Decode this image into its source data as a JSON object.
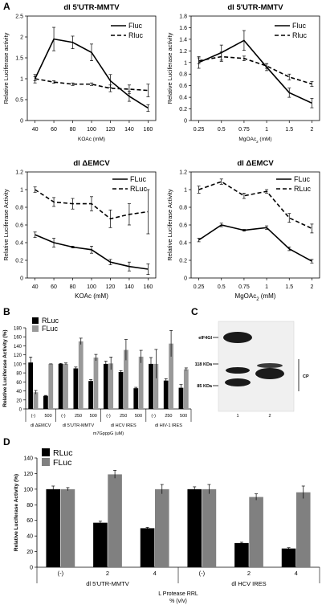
{
  "colors": {
    "black": "#000000",
    "gray": "#999999",
    "white": "#ffffff",
    "blot_bg": "#f0f0f0",
    "band": "#1a1a1a"
  },
  "panel_letters": [
    "A",
    "B",
    "C",
    "D"
  ],
  "chart_data": [
    {
      "id": "A1",
      "type": "line",
      "title": "dl 5'UTR-MMTV",
      "xlabel": "KOAc (mM)",
      "ylabel": "Relative Luciferase activity",
      "categories": [
        "40",
        "60",
        "80",
        "100",
        "120",
        "140",
        "160"
      ],
      "ylim": [
        0,
        2.5
      ],
      "yticks": [
        "0",
        "0.5",
        "1",
        "1.5",
        "2",
        "2.5"
      ],
      "legend_position": "top-right",
      "series": [
        {
          "name": "Fluc",
          "style": "solid",
          "values": [
            1.0,
            1.95,
            1.87,
            1.63,
            0.95,
            0.58,
            0.3
          ],
          "err": [
            0.1,
            0.28,
            0.15,
            0.2,
            0.15,
            0.12,
            0.08
          ]
        },
        {
          "name": "Rluc",
          "style": "dashed",
          "values": [
            1.0,
            0.92,
            0.87,
            0.87,
            0.77,
            0.75,
            0.72
          ],
          "err": [
            0.05,
            0.03,
            0.03,
            0.03,
            0.08,
            0.1,
            0.15
          ]
        }
      ]
    },
    {
      "id": "A2",
      "type": "line",
      "title": "dl 5'UTR-MMTV",
      "xlabel": "MgOAc2 (mM)",
      "ylabel": "Relative Luciferase activity",
      "categories": [
        "0.25",
        "0.5",
        "0.75",
        "1",
        "1.5",
        "2"
      ],
      "ylim": [
        0,
        1.8
      ],
      "yticks": [
        "0",
        "0.2",
        "0.4",
        "0.6",
        "0.8",
        "1",
        "1.2",
        "1.4",
        "1.6",
        "1.8"
      ],
      "legend_position": "top-right",
      "series": [
        {
          "name": "Fluc",
          "style": "solid",
          "values": [
            1.0,
            1.17,
            1.38,
            0.92,
            0.48,
            0.3
          ],
          "err": [
            0.1,
            0.13,
            0.17,
            0.06,
            0.08,
            0.08
          ]
        },
        {
          "name": "Rluc",
          "style": "dashed",
          "values": [
            1.03,
            1.1,
            1.07,
            0.94,
            0.75,
            0.63
          ],
          "err": [
            0.05,
            0.08,
            0.04,
            0.04,
            0.05,
            0.04
          ]
        }
      ]
    },
    {
      "id": "A3",
      "type": "line",
      "title": "dl ΔEMCV",
      "xlabel": "KOAc (mM)",
      "ylabel": "Relative Luciferase Activity",
      "categories": [
        "40",
        "60",
        "80",
        "100",
        "120",
        "140",
        "160"
      ],
      "ylim": [
        0,
        1.2
      ],
      "yticks": [
        "0",
        "0.2",
        "0.4",
        "0.6",
        "0.8",
        "1",
        "1.2"
      ],
      "legend_position": "top-right",
      "series": [
        {
          "name": "FLuc",
          "style": "solid",
          "values": [
            0.49,
            0.4,
            0.35,
            0.32,
            0.18,
            0.13,
            0.1
          ],
          "err": [
            0.03,
            0.05,
            0.01,
            0.04,
            0.03,
            0.05,
            0.06
          ]
        },
        {
          "name": "RLuc",
          "style": "dashed",
          "values": [
            1.0,
            0.86,
            0.84,
            0.84,
            0.67,
            0.72,
            0.75
          ],
          "err": [
            0.03,
            0.05,
            0.06,
            0.08,
            0.1,
            0.12,
            0.25
          ]
        }
      ]
    },
    {
      "id": "A4",
      "type": "line",
      "title": "dl ΔEMCV",
      "xlabel": "MgOAc2 (mM)",
      "ylabel": "Relative Luciferase Activity",
      "categories": [
        "0.25",
        "0.5",
        "0.75",
        "1",
        "1.5",
        "2"
      ],
      "ylim": [
        0,
        1.2
      ],
      "yticks": [
        "0",
        "0.2",
        "0.4",
        "0.6",
        "0.8",
        "1",
        "1.2"
      ],
      "legend_position": "top-right",
      "series": [
        {
          "name": "FLuc",
          "style": "solid",
          "values": [
            0.43,
            0.6,
            0.54,
            0.57,
            0.33,
            0.19
          ],
          "err": [
            0.02,
            0.02,
            0.01,
            0.02,
            0.02,
            0.02
          ]
        },
        {
          "name": "RLuc",
          "style": "dashed",
          "values": [
            1.0,
            1.09,
            0.93,
            0.98,
            0.68,
            0.56
          ],
          "err": [
            0.04,
            0.03,
            0.03,
            0.02,
            0.05,
            0.05
          ]
        }
      ]
    },
    {
      "id": "B",
      "type": "bar",
      "ylabel": "Relative Luciferase Activity (%)",
      "ylim": [
        0,
        180
      ],
      "yticks": [
        "0",
        "20",
        "40",
        "60",
        "80",
        "100",
        "120",
        "140",
        "160",
        "180"
      ],
      "xlabel": "m7GpppG (uM)",
      "legend_position": "top-left",
      "categories": [
        "(-)",
        "500",
        "(-)",
        "250",
        "500",
        "(-)",
        "250",
        "500",
        "(-)",
        "250",
        "500"
      ],
      "groups": [
        {
          "label": "dl ΔEMCV",
          "count": 2
        },
        {
          "label": "dl 5'UTR-MMTV",
          "count": 3
        },
        {
          "label": "dl HCV IRES",
          "count": 3
        },
        {
          "label": "dl HIV-1 IRES",
          "count": 3
        }
      ],
      "series": [
        {
          "name": "RLuc",
          "color": "#000000",
          "values": [
            103,
            29,
            100,
            90,
            62,
            100,
            82,
            46,
            100,
            63,
            47
          ],
          "err": [
            12,
            1,
            1,
            3,
            3,
            6,
            3,
            2,
            14,
            4,
            7
          ]
        },
        {
          "name": "FLuc",
          "color": "#999999",
          "values": [
            37,
            100,
            100,
            150,
            114,
            101,
            131,
            116,
            100,
            145,
            88
          ],
          "err": [
            4,
            0,
            2,
            7,
            7,
            14,
            23,
            14,
            32,
            29,
            3
          ]
        }
      ]
    },
    {
      "id": "D",
      "type": "bar",
      "ylabel": "Relative Luciferase Activity (%)",
      "ylim": [
        0,
        140
      ],
      "yticks": [
        "0",
        "20",
        "40",
        "60",
        "80",
        "100",
        "120",
        "140"
      ],
      "xlabel_lines": [
        "L Protease RRL",
        "% (v/v)"
      ],
      "legend_position": "top-left",
      "categories": [
        "(-)",
        "2",
        "4",
        "(-)",
        "2",
        "4"
      ],
      "groups": [
        {
          "label": "dl 5'UTR-MMTV",
          "count": 3
        },
        {
          "label": "dl HCV IRES",
          "count": 3
        }
      ],
      "series": [
        {
          "name": "RLuc",
          "color": "#000000",
          "values": [
            100,
            57,
            50,
            100,
            31,
            24
          ],
          "err": [
            4,
            2,
            1,
            3,
            1,
            1
          ]
        },
        {
          "name": "FLuc",
          "color": "#808080",
          "values": [
            100,
            119,
            100,
            100,
            90,
            96
          ],
          "err": [
            2,
            5,
            6,
            6,
            4,
            8
          ]
        }
      ]
    }
  ],
  "blot": {
    "marker_labels": [
      "eIF4GI",
      "118 KDa",
      "85 KDa"
    ],
    "lane_labels": [
      "1",
      "2"
    ],
    "bracket_label": "CP"
  }
}
